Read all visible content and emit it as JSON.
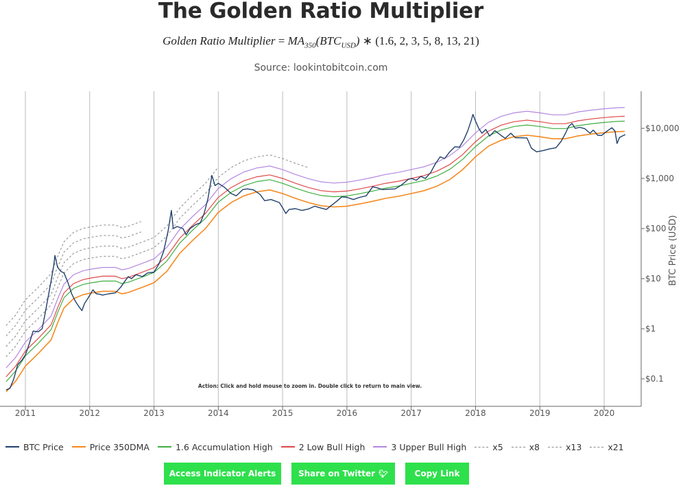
{
  "header": {
    "title": "The Golden Ratio Multiplier",
    "formula": {
      "lhs": "Golden Ratio Multiplier",
      "eq": " = ",
      "ma": "MA",
      "ma_sub": "350",
      "btc": "(BTC",
      "btc_sub": "USD",
      "close": ")",
      "op": " ∗ ",
      "multipliers": "(1.6, 2, 3, 5, 8, 13, 21)"
    },
    "source": "Source: lookintobitcoin.com"
  },
  "chart_data": {
    "type": "line",
    "yscale": "log",
    "ylim": [
      0.05,
      40000
    ],
    "xlim": [
      2010.7,
      2020.6
    ],
    "ylabel": "BTC Price (USD)",
    "y_ticks": [
      {
        "value": 0.1,
        "label": "$0.1"
      },
      {
        "value": 1,
        "label": "$1"
      },
      {
        "value": 10,
        "label": "$10"
      },
      {
        "value": 100,
        "label": "$100"
      },
      {
        "value": 1000,
        "label": "$1,000"
      },
      {
        "value": 10000,
        "label": "$10,000"
      }
    ],
    "x_ticks": [
      {
        "value": 2011,
        "label": "2011"
      },
      {
        "value": 2012,
        "label": "2012"
      },
      {
        "value": 2013,
        "label": "2013"
      },
      {
        "value": 2014,
        "label": "2014"
      },
      {
        "value": 2015,
        "label": "2015"
      },
      {
        "value": 2016,
        "label": "2016"
      },
      {
        "value": 2017,
        "label": "2017"
      },
      {
        "value": 2018,
        "label": "2018"
      },
      {
        "value": 2019,
        "label": "2019"
      },
      {
        "value": 2020,
        "label": "2020"
      }
    ],
    "grid": "vertical",
    "annotation": "Action: Click and hold mouse to zoom in.  Double click to return to main view.",
    "ma350": [
      [
        2010.7,
        0.055
      ],
      [
        2010.85,
        0.09
      ],
      [
        2011.0,
        0.18
      ],
      [
        2011.2,
        0.32
      ],
      [
        2011.4,
        0.6
      ],
      [
        2011.5,
        1.3
      ],
      [
        2011.6,
        2.6
      ],
      [
        2011.75,
        4.0
      ],
      [
        2011.9,
        4.8
      ],
      [
        2012.0,
        5.1
      ],
      [
        2012.2,
        5.6
      ],
      [
        2012.4,
        5.6
      ],
      [
        2012.5,
        5.0
      ],
      [
        2012.6,
        5.3
      ],
      [
        2012.8,
        6.6
      ],
      [
        2013.0,
        8.3
      ],
      [
        2013.2,
        14
      ],
      [
        2013.4,
        32
      ],
      [
        2013.6,
        58
      ],
      [
        2013.8,
        100
      ],
      [
        2014.0,
        210
      ],
      [
        2014.2,
        330
      ],
      [
        2014.4,
        450
      ],
      [
        2014.6,
        540
      ],
      [
        2014.8,
        590
      ],
      [
        2015.0,
        500
      ],
      [
        2015.2,
        400
      ],
      [
        2015.4,
        330
      ],
      [
        2015.6,
        285
      ],
      [
        2015.8,
        270
      ],
      [
        2016.0,
        280
      ],
      [
        2016.2,
        310
      ],
      [
        2016.4,
        350
      ],
      [
        2016.6,
        400
      ],
      [
        2016.8,
        440
      ],
      [
        2017.0,
        500
      ],
      [
        2017.2,
        570
      ],
      [
        2017.4,
        700
      ],
      [
        2017.6,
        950
      ],
      [
        2017.8,
        1500
      ],
      [
        2018.0,
        2700
      ],
      [
        2018.2,
        4400
      ],
      [
        2018.4,
        5800
      ],
      [
        2018.6,
        6800
      ],
      [
        2018.8,
        7300
      ],
      [
        2019.0,
        6800
      ],
      [
        2019.2,
        6200
      ],
      [
        2019.4,
        6200
      ],
      [
        2019.6,
        7100
      ],
      [
        2019.8,
        7700
      ],
      [
        2020.0,
        8200
      ],
      [
        2020.2,
        8600
      ],
      [
        2020.32,
        8700
      ]
    ],
    "btc_price": [
      [
        2010.7,
        0.06
      ],
      [
        2010.76,
        0.065
      ],
      [
        2010.82,
        0.1
      ],
      [
        2010.88,
        0.19
      ],
      [
        2010.95,
        0.24
      ],
      [
        2011.0,
        0.3
      ],
      [
        2011.06,
        0.5
      ],
      [
        2011.12,
        0.9
      ],
      [
        2011.2,
        0.87
      ],
      [
        2011.26,
        1.0
      ],
      [
        2011.3,
        1.8
      ],
      [
        2011.35,
        4.0
      ],
      [
        2011.4,
        9.0
      ],
      [
        2011.44,
        18
      ],
      [
        2011.46,
        29
      ],
      [
        2011.5,
        17
      ],
      [
        2011.55,
        14
      ],
      [
        2011.6,
        13
      ],
      [
        2011.66,
        8.5
      ],
      [
        2011.72,
        5.0
      ],
      [
        2011.78,
        3.5
      ],
      [
        2011.83,
        2.8
      ],
      [
        2011.88,
        2.3
      ],
      [
        2011.92,
        3.2
      ],
      [
        2011.98,
        4.2
      ],
      [
        2012.05,
        6.0
      ],
      [
        2012.1,
        5.0
      ],
      [
        2012.15,
        4.9
      ],
      [
        2012.2,
        4.7
      ],
      [
        2012.3,
        5.0
      ],
      [
        2012.4,
        5.2
      ],
      [
        2012.48,
        6.7
      ],
      [
        2012.55,
        9.0
      ],
      [
        2012.6,
        11
      ],
      [
        2012.65,
        10
      ],
      [
        2012.72,
        12
      ],
      [
        2012.82,
        11
      ],
      [
        2012.9,
        13
      ],
      [
        2013.0,
        13.5
      ],
      [
        2013.08,
        20
      ],
      [
        2013.15,
        35
      ],
      [
        2013.22,
        90
      ],
      [
        2013.27,
        230
      ],
      [
        2013.3,
        100
      ],
      [
        2013.36,
        110
      ],
      [
        2013.45,
        100
      ],
      [
        2013.5,
        75
      ],
      [
        2013.56,
        100
      ],
      [
        2013.65,
        120
      ],
      [
        2013.72,
        130
      ],
      [
        2013.78,
        200
      ],
      [
        2013.84,
        400
      ],
      [
        2013.9,
        1150
      ],
      [
        2013.95,
        720
      ],
      [
        2014.0,
        800
      ],
      [
        2014.1,
        660
      ],
      [
        2014.2,
        500
      ],
      [
        2014.28,
        450
      ],
      [
        2014.38,
        600
      ],
      [
        2014.45,
        620
      ],
      [
        2014.55,
        590
      ],
      [
        2014.65,
        480
      ],
      [
        2014.72,
        360
      ],
      [
        2014.82,
        380
      ],
      [
        2014.95,
        330
      ],
      [
        2015.0,
        260
      ],
      [
        2015.05,
        200
      ],
      [
        2015.1,
        240
      ],
      [
        2015.2,
        250
      ],
      [
        2015.3,
        230
      ],
      [
        2015.4,
        245
      ],
      [
        2015.5,
        280
      ],
      [
        2015.58,
        260
      ],
      [
        2015.68,
        240
      ],
      [
        2015.76,
        290
      ],
      [
        2015.84,
        350
      ],
      [
        2015.92,
        430
      ],
      [
        2016.0,
        420
      ],
      [
        2016.1,
        380
      ],
      [
        2016.2,
        420
      ],
      [
        2016.3,
        450
      ],
      [
        2016.4,
        680
      ],
      [
        2016.47,
        650
      ],
      [
        2016.55,
        600
      ],
      [
        2016.65,
        610
      ],
      [
        2016.75,
        620
      ],
      [
        2016.85,
        740
      ],
      [
        2016.95,
        950
      ],
      [
        2017.0,
        1000
      ],
      [
        2017.08,
        920
      ],
      [
        2017.15,
        1100
      ],
      [
        2017.22,
        1000
      ],
      [
        2017.3,
        1300
      ],
      [
        2017.38,
        2000
      ],
      [
        2017.45,
        2700
      ],
      [
        2017.52,
        2500
      ],
      [
        2017.6,
        3400
      ],
      [
        2017.68,
        4300
      ],
      [
        2017.75,
        4200
      ],
      [
        2017.82,
        6000
      ],
      [
        2017.88,
        9000
      ],
      [
        2017.93,
        14000
      ],
      [
        2017.96,
        19000
      ],
      [
        2018.0,
        14000
      ],
      [
        2018.05,
        10000
      ],
      [
        2018.1,
        8000
      ],
      [
        2018.16,
        9500
      ],
      [
        2018.22,
        7000
      ],
      [
        2018.3,
        9000
      ],
      [
        2018.38,
        7500
      ],
      [
        2018.46,
        6300
      ],
      [
        2018.55,
        8000
      ],
      [
        2018.62,
        6500
      ],
      [
        2018.7,
        6500
      ],
      [
        2018.8,
        6400
      ],
      [
        2018.87,
        4000
      ],
      [
        2018.95,
        3400
      ],
      [
        2019.05,
        3600
      ],
      [
        2019.15,
        3900
      ],
      [
        2019.25,
        4100
      ],
      [
        2019.33,
        5500
      ],
      [
        2019.4,
        8000
      ],
      [
        2019.45,
        11000
      ],
      [
        2019.5,
        12500
      ],
      [
        2019.55,
        10000
      ],
      [
        2019.62,
        10500
      ],
      [
        2019.7,
        9800
      ],
      [
        2019.78,
        8000
      ],
      [
        2019.83,
        9200
      ],
      [
        2019.9,
        7300
      ],
      [
        2019.96,
        7200
      ],
      [
        2020.05,
        8900
      ],
      [
        2020.12,
        10300
      ],
      [
        2020.17,
        8800
      ],
      [
        2020.2,
        5000
      ],
      [
        2020.24,
        6600
      ],
      [
        2020.3,
        7200
      ],
      [
        2020.33,
        7500
      ]
    ],
    "multiplier_bands": [
      {
        "name": "1.6 Accumulation High",
        "multiplier": 1.6,
        "color": "#3fae3f",
        "dashed": false
      },
      {
        "name": "2 Low Bull High",
        "multiplier": 2,
        "color": "#e04848",
        "dashed": false
      },
      {
        "name": "3 Upper Bull High",
        "multiplier": 3,
        "color": "#b387e0",
        "dashed": false
      },
      {
        "name": "x5",
        "multiplier": 5,
        "color": "#888888",
        "dashed": true,
        "end": 2015.5
      },
      {
        "name": "x8",
        "multiplier": 8,
        "color": "#888888",
        "dashed": true,
        "end": 2014.0
      },
      {
        "name": "x13",
        "multiplier": 13,
        "color": "#888888",
        "dashed": true,
        "end": 2012.8
      },
      {
        "name": "x21",
        "multiplier": 21,
        "color": "#888888",
        "dashed": true,
        "end": 2012.8
      }
    ],
    "colors": {
      "btc_price": "#1f3f6b",
      "ma350": "#f5891f",
      "grid": "#bbbbbb",
      "axis": "#666666"
    }
  },
  "legend": [
    {
      "label": "BTC Price",
      "color": "#1f3f6b",
      "dashed": false
    },
    {
      "label": "Price 350DMA",
      "color": "#f5891f",
      "dashed": false
    },
    {
      "label": "1.6 Accumulation High",
      "color": "#3fae3f",
      "dashed": false
    },
    {
      "label": "2 Low Bull High",
      "color": "#e04848",
      "dashed": false
    },
    {
      "label": "3 Upper Bull High",
      "color": "#b387e0",
      "dashed": false
    },
    {
      "label": "x5",
      "color": "#888888",
      "dashed": true
    },
    {
      "label": "x8",
      "color": "#888888",
      "dashed": true
    },
    {
      "label": "x13",
      "color": "#888888",
      "dashed": true
    },
    {
      "label": "x21",
      "color": "#888888",
      "dashed": true
    }
  ],
  "buttons": {
    "alerts": "Access Indicator Alerts",
    "twitter": "Share on Twitter",
    "copy": "Copy Link",
    "color": "#2ee04c"
  }
}
